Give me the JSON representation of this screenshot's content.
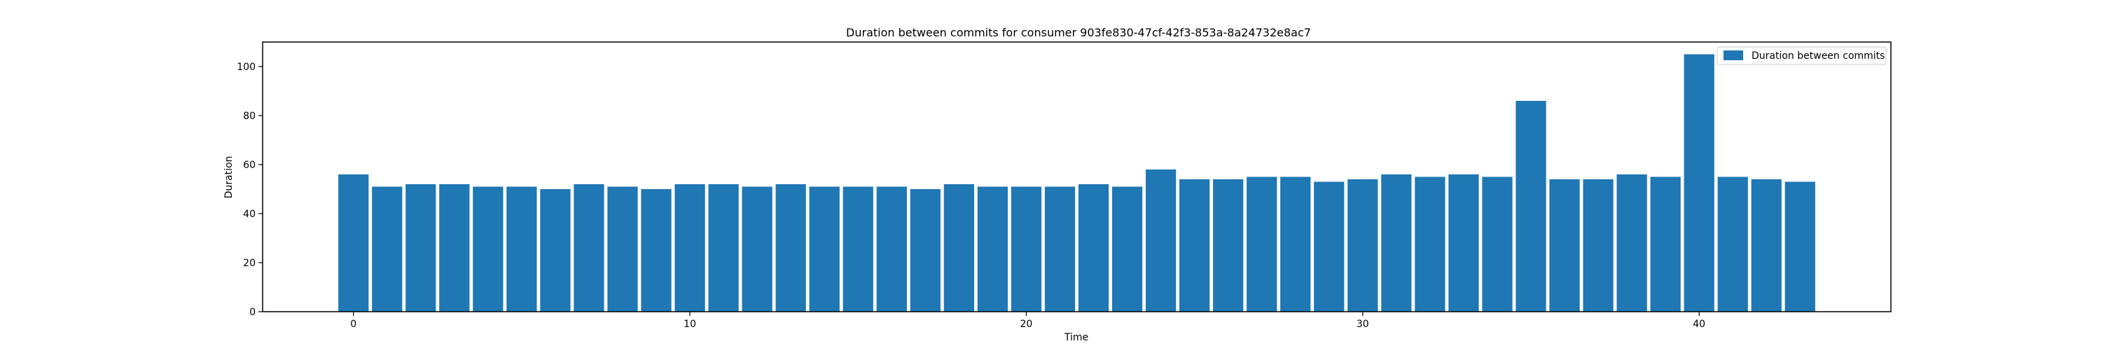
{
  "chart_data": {
    "type": "bar",
    "title": "Duration between commits for consumer 903fe830-47cf-42f3-853a-8a24732e8ac7",
    "xlabel": "Time",
    "ylabel": "Duration",
    "xlim": [
      -2.7,
      45.7
    ],
    "ylim": [
      0,
      110
    ],
    "xticks": [
      0,
      10,
      20,
      30,
      40
    ],
    "yticks": [
      0,
      20,
      40,
      60,
      80,
      100
    ],
    "grid": false,
    "legend_position": "top-right",
    "series": [
      {
        "name": "Duration between commits",
        "color": "#1f77b4",
        "x": [
          0,
          1,
          2,
          3,
          4,
          5,
          6,
          7,
          8,
          9,
          10,
          11,
          12,
          13,
          14,
          15,
          16,
          17,
          18,
          19,
          20,
          21,
          22,
          23,
          24,
          25,
          26,
          27,
          28,
          29,
          30,
          31,
          32,
          33,
          34,
          35,
          36,
          37,
          38,
          39,
          40,
          41,
          42,
          43
        ],
        "values": [
          56,
          51,
          52,
          52,
          51,
          51,
          50,
          52,
          51,
          50,
          52,
          52,
          51,
          52,
          51,
          51,
          51,
          50,
          52,
          51,
          51,
          51,
          52,
          51,
          58,
          54,
          54,
          55,
          55,
          53,
          54,
          56,
          55,
          56,
          55,
          86,
          54,
          54,
          56,
          55,
          105,
          55,
          54,
          53
        ]
      }
    ]
  }
}
